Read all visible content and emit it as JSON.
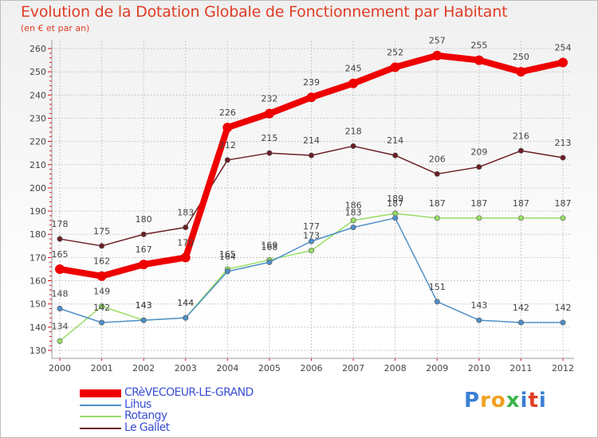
{
  "chart_data": {
    "type": "line",
    "title": "Evolution de la Dotation Globale de Fonctionnement par Habitant",
    "subtitle": "(en € et par an)",
    "xlabel": "",
    "ylabel": "",
    "categories": [
      "2000",
      "2001",
      "2002",
      "2003",
      "2004",
      "2005",
      "2006",
      "2007",
      "2008",
      "2009",
      "2010",
      "2011",
      "2012"
    ],
    "ylim": [
      130,
      260
    ],
    "yticks": [
      130,
      140,
      150,
      160,
      170,
      180,
      190,
      200,
      210,
      220,
      230,
      240,
      250,
      260
    ],
    "grid": true,
    "legend_position": "bottom-left",
    "series": [
      {
        "name": "CRèVECOEUR-LE-GRAND",
        "color": "#ee0000",
        "values": [
          165,
          162,
          167,
          170,
          226,
          232,
          239,
          245,
          252,
          257,
          255,
          250,
          254
        ]
      },
      {
        "name": "Lihus",
        "color": "#4f8fc7",
        "values": [
          148,
          142,
          143,
          144,
          164,
          168,
          177,
          183,
          187,
          151,
          143,
          142,
          142
        ]
      },
      {
        "name": "Rotangy",
        "color": "#99dd66",
        "values": [
          134,
          149,
          143,
          144,
          165,
          169,
          173,
          186,
          189,
          187,
          187,
          187,
          187
        ]
      },
      {
        "name": "Le Gallet",
        "color": "#6b1f25",
        "values": [
          178,
          175,
          180,
          183,
          212,
          215,
          214,
          218,
          214,
          206,
          209,
          216,
          213
        ]
      }
    ]
  },
  "legend": {
    "items": [
      "CRèVECOEUR-LE-GRAND",
      "Lihus",
      "Rotangy",
      "Le Gallet"
    ]
  },
  "logo": {
    "text": "Proxiti",
    "colors": [
      "#3a7fd5",
      "#f0a020",
      "#3cb44b",
      "#e03c25"
    ]
  }
}
